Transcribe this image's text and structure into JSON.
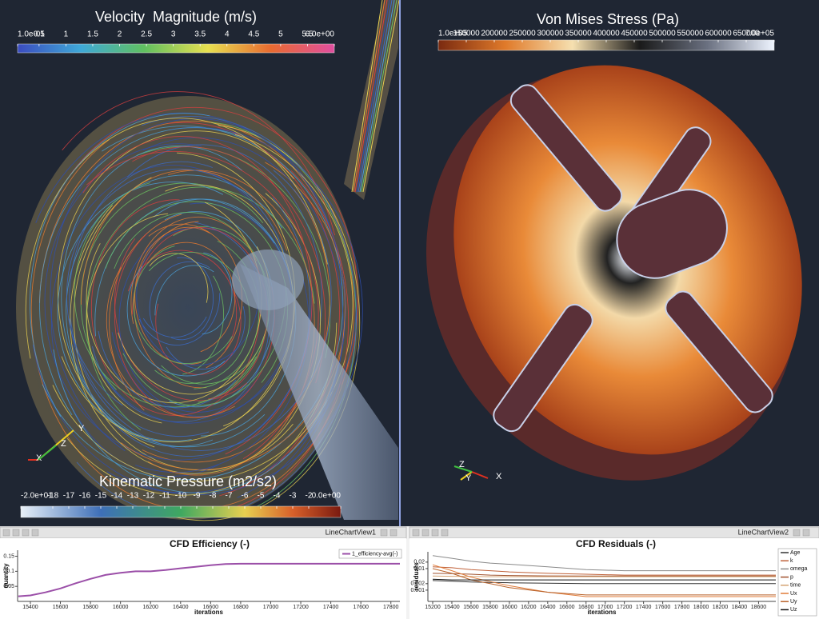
{
  "render_views": [
    {
      "title": "Velocity  Magnitude (m/s)",
      "vlim": [
        0.1,
        6
      ],
      "ticks": [
        {
          "value": 0.1,
          "label": "1.0e-01"
        },
        0.5,
        1,
        1.5,
        2,
        2.5,
        3,
        3.5,
        4,
        4.5,
        5,
        5.5,
        {
          "value": 6,
          "label": "6.0e+00"
        }
      ]
    },
    {
      "title": "Kinematic Pressure (m2/s2)",
      "vlim": [
        -20,
        0
      ],
      "ticks": [
        {
          "value": -20,
          "label": "-2.0e+01"
        },
        -18,
        -17,
        -16,
        -15,
        -14,
        -13,
        -12,
        -11,
        -10,
        -9,
        -8,
        -7,
        -6,
        -5,
        -4,
        -3,
        -2,
        {
          "value": 0,
          "label": "0.0e+00"
        }
      ]
    },
    {
      "title": "Von Mises Stress (Pa)",
      "vlim": [
        100000,
        700000
      ],
      "ticks": [
        {
          "value": 100000,
          "label": "1.0e+05"
        },
        150000,
        200000,
        250000,
        300000,
        350000,
        400000,
        450000,
        500000,
        550000,
        600000,
        650000,
        {
          "value": 700000,
          "label": "7.0e+05"
        }
      ]
    }
  ],
  "axes_triads": [
    [
      "X",
      "Y",
      "Z"
    ],
    [
      "X",
      "Y",
      "Z"
    ]
  ],
  "view_tabs": [
    "LineChartView1",
    "LineChartView2"
  ],
  "chart_data": [
    {
      "type": "line",
      "title": "CFD Efficiency (-)",
      "x_label": "iterations",
      "y_label": "quantity",
      "x": [
        15320,
        15400,
        15500,
        15600,
        15700,
        15800,
        15900,
        16000,
        16100,
        16200,
        16300,
        16400,
        16500,
        16600,
        16700,
        16800,
        17000,
        17500,
        17860
      ],
      "series": [
        {
          "name": "1_efficiency-avg(-)",
          "color": "#9b4fa8",
          "values": [
            0.017,
            0.02,
            0.03,
            0.043,
            0.06,
            0.075,
            0.088,
            0.095,
            0.1,
            0.1,
            0.104,
            0.11,
            0.115,
            0.12,
            0.124,
            0.125,
            0.125,
            0.125,
            0.125
          ]
        }
      ],
      "xlim": [
        15315,
        17860
      ],
      "ylim": [
        0,
        0.17
      ],
      "xticks": [
        15400,
        15600,
        15800,
        16000,
        16200,
        16400,
        16600,
        16800,
        17000,
        17200,
        17400,
        17600,
        17800
      ],
      "yticks": [
        0.05,
        0.1,
        0.15
      ],
      "log_y": false,
      "legend": "top-right"
    },
    {
      "type": "line",
      "title": "CFD Residuals (-)",
      "x_label": "iterations",
      "y_label": "residuals",
      "x": [
        15200,
        15400,
        15600,
        15800,
        16000,
        16400,
        16800,
        17200,
        18000,
        18780
      ],
      "series": [
        {
          "name": "Age",
          "color": "#333333",
          "values": [
            0.0028,
            0.0026,
            0.0024,
            0.0023,
            0.0022,
            0.0021,
            0.002,
            0.002,
            0.002,
            0.002
          ]
        },
        {
          "name": "k",
          "color": "#c0623a",
          "values": [
            0.012,
            0.011,
            0.009,
            0.008,
            0.007,
            0.006,
            0.0055,
            0.005,
            0.005,
            0.005
          ]
        },
        {
          "name": "omega",
          "color": "#8a8a8a",
          "values": [
            0.04,
            0.03,
            0.022,
            0.018,
            0.016,
            0.012,
            0.009,
            0.008,
            0.008,
            0.008
          ]
        },
        {
          "name": "p",
          "color": "#a0522d",
          "values": [
            0.006,
            0.0058,
            0.0055,
            0.005,
            0.0048,
            0.0046,
            0.0045,
            0.0045,
            0.0045,
            0.0045
          ]
        },
        {
          "name": "time",
          "color": "#d4a373",
          "values": [
            0.0045,
            0.0044,
            0.0043,
            0.0042,
            0.0042,
            0.0042,
            0.0042,
            0.0042,
            0.0042,
            0.0042
          ]
        },
        {
          "name": "Ux",
          "color": "#e07b39",
          "values": [
            0.015,
            0.008,
            0.004,
            0.0025,
            0.0016,
            0.0008,
            0.0005,
            0.0005,
            0.0005,
            0.0005
          ]
        },
        {
          "name": "Uy",
          "color": "#b8622a",
          "values": [
            0.01,
            0.006,
            0.003,
            0.002,
            0.0013,
            0.0008,
            0.0006,
            0.0006,
            0.0006,
            0.0006
          ]
        },
        {
          "name": "Uz",
          "color": "#111111",
          "values": [
            0.0032,
            0.003,
            0.003,
            0.003,
            0.003,
            0.003,
            0.003,
            0.003,
            0.003,
            0.003
          ]
        }
      ],
      "xlim": [
        15150,
        18780
      ],
      "ylim": [
        0.0003,
        0.06
      ],
      "xticks": [
        15200,
        15400,
        15600,
        15800,
        16000,
        16200,
        16400,
        16600,
        16800,
        17000,
        17200,
        17400,
        17600,
        17800,
        18000,
        18200,
        18400,
        18600
      ],
      "yticks": [
        0.001,
        0.002,
        0.01,
        0.02
      ],
      "log_y": true,
      "legend": "right"
    }
  ]
}
